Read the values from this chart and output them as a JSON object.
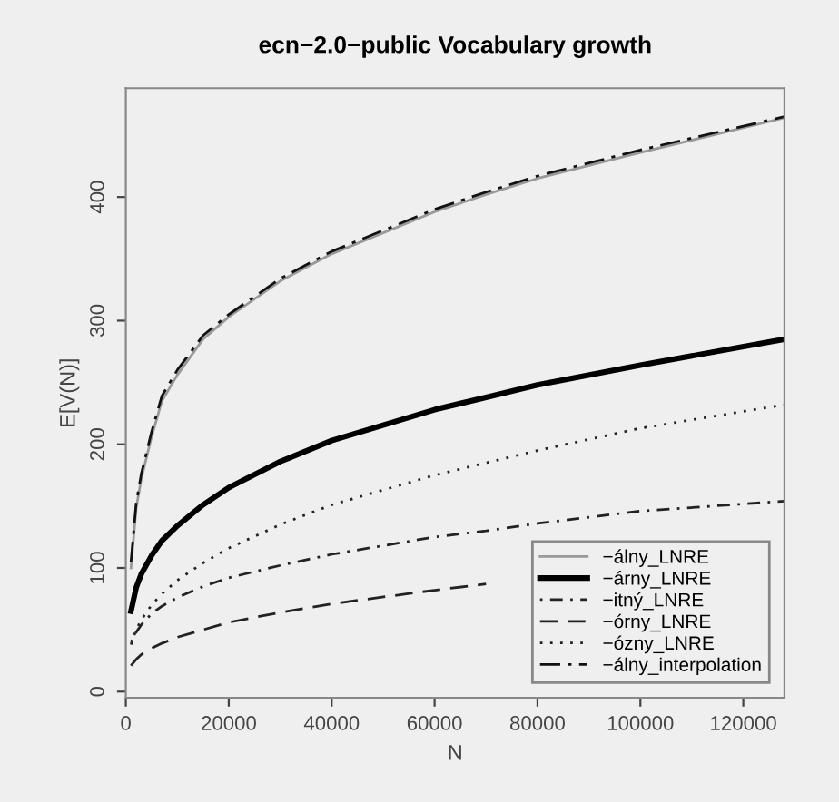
{
  "chart_data": {
    "type": "line",
    "title": "ecn−2.0−public Vocabulary growth",
    "xlabel": "N",
    "ylabel": "E[V(N)]",
    "x": [
      1000,
      2000,
      3000,
      5000,
      7000,
      10000,
      15000,
      20000,
      30000,
      40000,
      60000,
      70000,
      80000,
      100000,
      128000
    ],
    "series": [
      {
        "name": "−álny_LNRE",
        "color": "#999999",
        "line_style": "solid",
        "values": [
          100,
          148,
          172,
          206,
          235,
          256,
          285,
          303,
          332,
          354,
          388,
          402,
          415,
          436,
          464
        ]
      },
      {
        "name": "−árny_LNRE",
        "color": "#000000",
        "line_style": "solid",
        "values": [
          65,
          84,
          95,
          110,
          122,
          134,
          151,
          165,
          186,
          203,
          228,
          238,
          248,
          264,
          285
        ]
      },
      {
        "name": "−itný_LNRE",
        "color": "#222222",
        "line_style": "dashdot",
        "values": [
          40,
          48,
          54,
          63,
          69,
          76,
          85,
          92,
          102,
          111,
          125,
          130,
          136,
          146,
          154
        ]
      },
      {
        "name": "−órny_LNRE",
        "color": "#222222",
        "line_style": "dashed",
        "values": [
          21,
          26,
          30,
          35,
          39,
          44,
          50,
          56,
          64,
          71,
          82,
          87,
          null,
          null,
          null
        ]
      },
      {
        "name": "−ózny_LNRE",
        "color": "#222222",
        "line_style": "dotted",
        "values": [
          38,
          50,
          58,
          70,
          79,
          90,
          104,
          116,
          135,
          151,
          175,
          185,
          195,
          213,
          232
        ]
      },
      {
        "name": "−álny_interpolation",
        "color": "#111111",
        "line_style": "longdashdot",
        "values": [
          105,
          152,
          176,
          210,
          239,
          260,
          288,
          305,
          334,
          356,
          390,
          404,
          417,
          438,
          465
        ]
      }
    ],
    "xlim": [
      0,
      128000
    ],
    "ylim": [
      -5,
      488
    ],
    "xticks": [
      0,
      20000,
      40000,
      60000,
      80000,
      100000,
      120000
    ],
    "yticks": [
      0,
      100,
      200,
      300,
      400
    ],
    "grid": false,
    "legend": "bottom right"
  }
}
